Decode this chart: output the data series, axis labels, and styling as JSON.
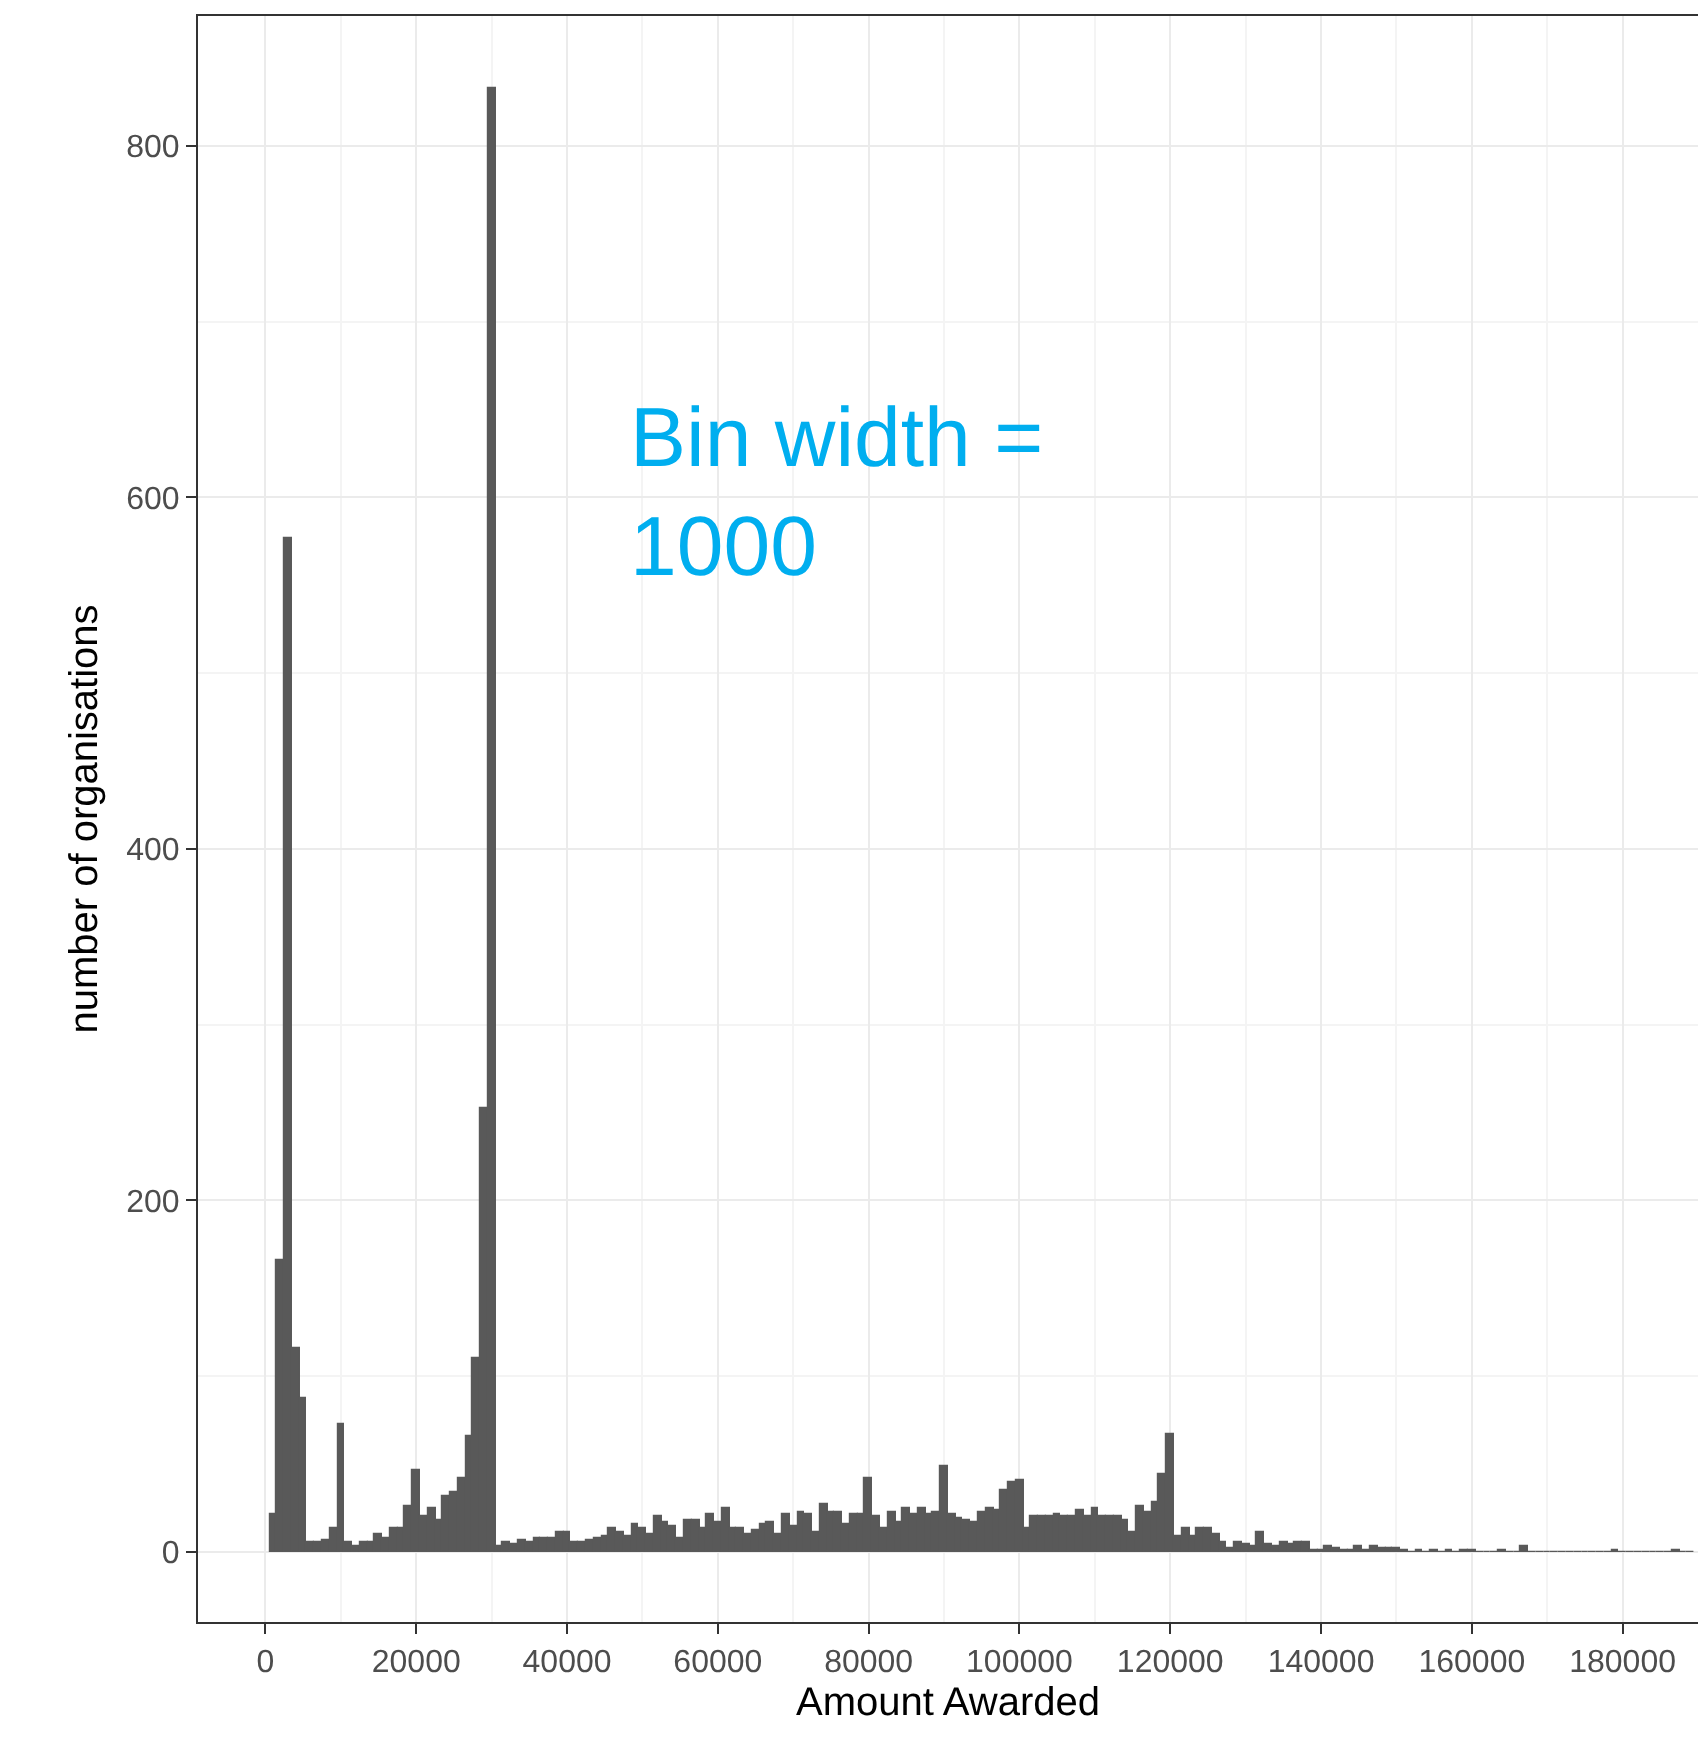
{
  "chart_data": {
    "type": "histogram",
    "xlabel": "Amount Awarded",
    "ylabel": "number of organisations",
    "annotations": [
      "Bin width =\n1000"
    ],
    "bins": [
      500,
      1500,
      2500,
      3500,
      4500,
      5500,
      6500,
      7500,
      8500,
      9500,
      10500,
      11500,
      12500,
      13500,
      14500,
      15500,
      16500,
      17500,
      18500,
      19500,
      20500,
      21500,
      22500,
      23500,
      24500,
      25500,
      26500,
      27500,
      28500,
      29500,
      30500,
      31500,
      32500,
      33500,
      34500,
      35500,
      36500,
      37500,
      38500,
      39500,
      40500,
      41500,
      42500,
      43500,
      44500,
      45500,
      46500,
      47500,
      48500,
      49500,
      50500,
      51500,
      52500,
      53500,
      54500,
      55500,
      56500,
      57500,
      58500,
      59500,
      60500,
      61500,
      62500,
      63500,
      64500,
      65500,
      66500,
      67500,
      68500,
      69500,
      70500,
      71500,
      72500,
      73500,
      74500,
      75500,
      76500,
      77500,
      78500,
      79500,
      80500,
      81500,
      82500,
      83500,
      84500,
      85500,
      86500,
      87500,
      88500,
      89500,
      90500,
      91500,
      92500,
      93500,
      94500,
      95500,
      96500,
      97500,
      98500,
      99500,
      100500,
      101500,
      102500,
      103500,
      104500,
      105500,
      106500,
      107500,
      108500,
      109500,
      110500,
      111500,
      112500,
      113500,
      114500,
      115500,
      116500,
      117500,
      118500,
      119500,
      120500,
      121500,
      122500,
      123500,
      124500,
      125500,
      126500,
      127500,
      128500,
      129500,
      130500,
      131500,
      132500,
      133500,
      134500,
      135500,
      136500,
      137500,
      138500,
      139500,
      140500,
      141500,
      142500,
      143500,
      144500,
      145500,
      146500,
      147500,
      148500,
      149500,
      150500,
      151500,
      152500,
      153500,
      154500,
      155500,
      156500,
      157500,
      158500,
      159500,
      160500,
      161500,
      162500,
      163500,
      164500,
      165500,
      166500,
      167500,
      168500,
      169500,
      170500,
      171500,
      172500,
      173500,
      174500,
      175500,
      176500,
      177500,
      178500,
      179500,
      180500,
      181500,
      182500,
      183500,
      184500,
      185500,
      186500,
      187500,
      188500,
      189500
    ],
    "values": [
      21,
      166,
      577,
      116,
      88,
      6,
      6,
      7,
      14,
      73,
      5,
      3,
      6,
      6,
      10,
      8,
      13,
      14,
      26,
      47,
      20,
      25,
      18,
      32,
      34,
      42,
      66,
      110,
      253,
      833,
      3,
      6,
      4,
      7,
      6,
      8,
      8,
      8,
      11,
      11,
      5,
      5,
      7,
      8,
      9,
      13,
      11,
      9,
      16,
      13,
      10,
      20,
      17,
      15,
      8,
      18,
      18,
      14,
      22,
      17,
      25,
      14,
      14,
      10,
      12,
      16,
      17,
      10,
      22,
      15,
      23,
      22,
      11,
      27,
      23,
      23,
      16,
      22,
      22,
      42,
      20,
      14,
      23,
      17,
      25,
      21,
      25,
      22,
      23,
      49,
      22,
      19,
      18,
      17,
      23,
      25,
      24,
      35,
      40,
      41,
      14,
      20,
      20,
      20,
      21,
      20,
      20,
      24,
      20,
      25,
      20,
      20,
      20,
      18,
      11,
      26,
      23,
      28,
      44,
      67,
      9,
      14,
      9,
      14,
      13,
      10,
      6,
      2,
      6,
      4,
      3,
      11,
      4,
      3,
      6,
      4,
      6,
      5,
      1,
      1,
      3,
      2,
      1,
      1,
      3,
      1,
      3,
      2,
      2,
      2,
      1,
      0,
      1,
      0,
      1,
      0,
      1,
      0,
      1,
      1,
      0,
      0,
      0,
      1,
      0,
      0,
      3,
      0,
      0,
      0,
      0,
      0,
      0,
      0,
      0,
      0,
      0,
      0,
      1,
      0,
      0,
      0,
      0,
      0,
      0,
      0,
      1,
      0,
      0
    ],
    "color": "#595959",
    "xlim": [
      -8950,
      190000
    ],
    "xticks": [
      0,
      20000,
      40000,
      60000,
      80000,
      100000,
      120000,
      140000,
      160000,
      180000
    ],
    "ylim": [
      -40,
      874
    ],
    "yticks": [
      0,
      200,
      400,
      600,
      800
    ],
    "grid": true
  }
}
